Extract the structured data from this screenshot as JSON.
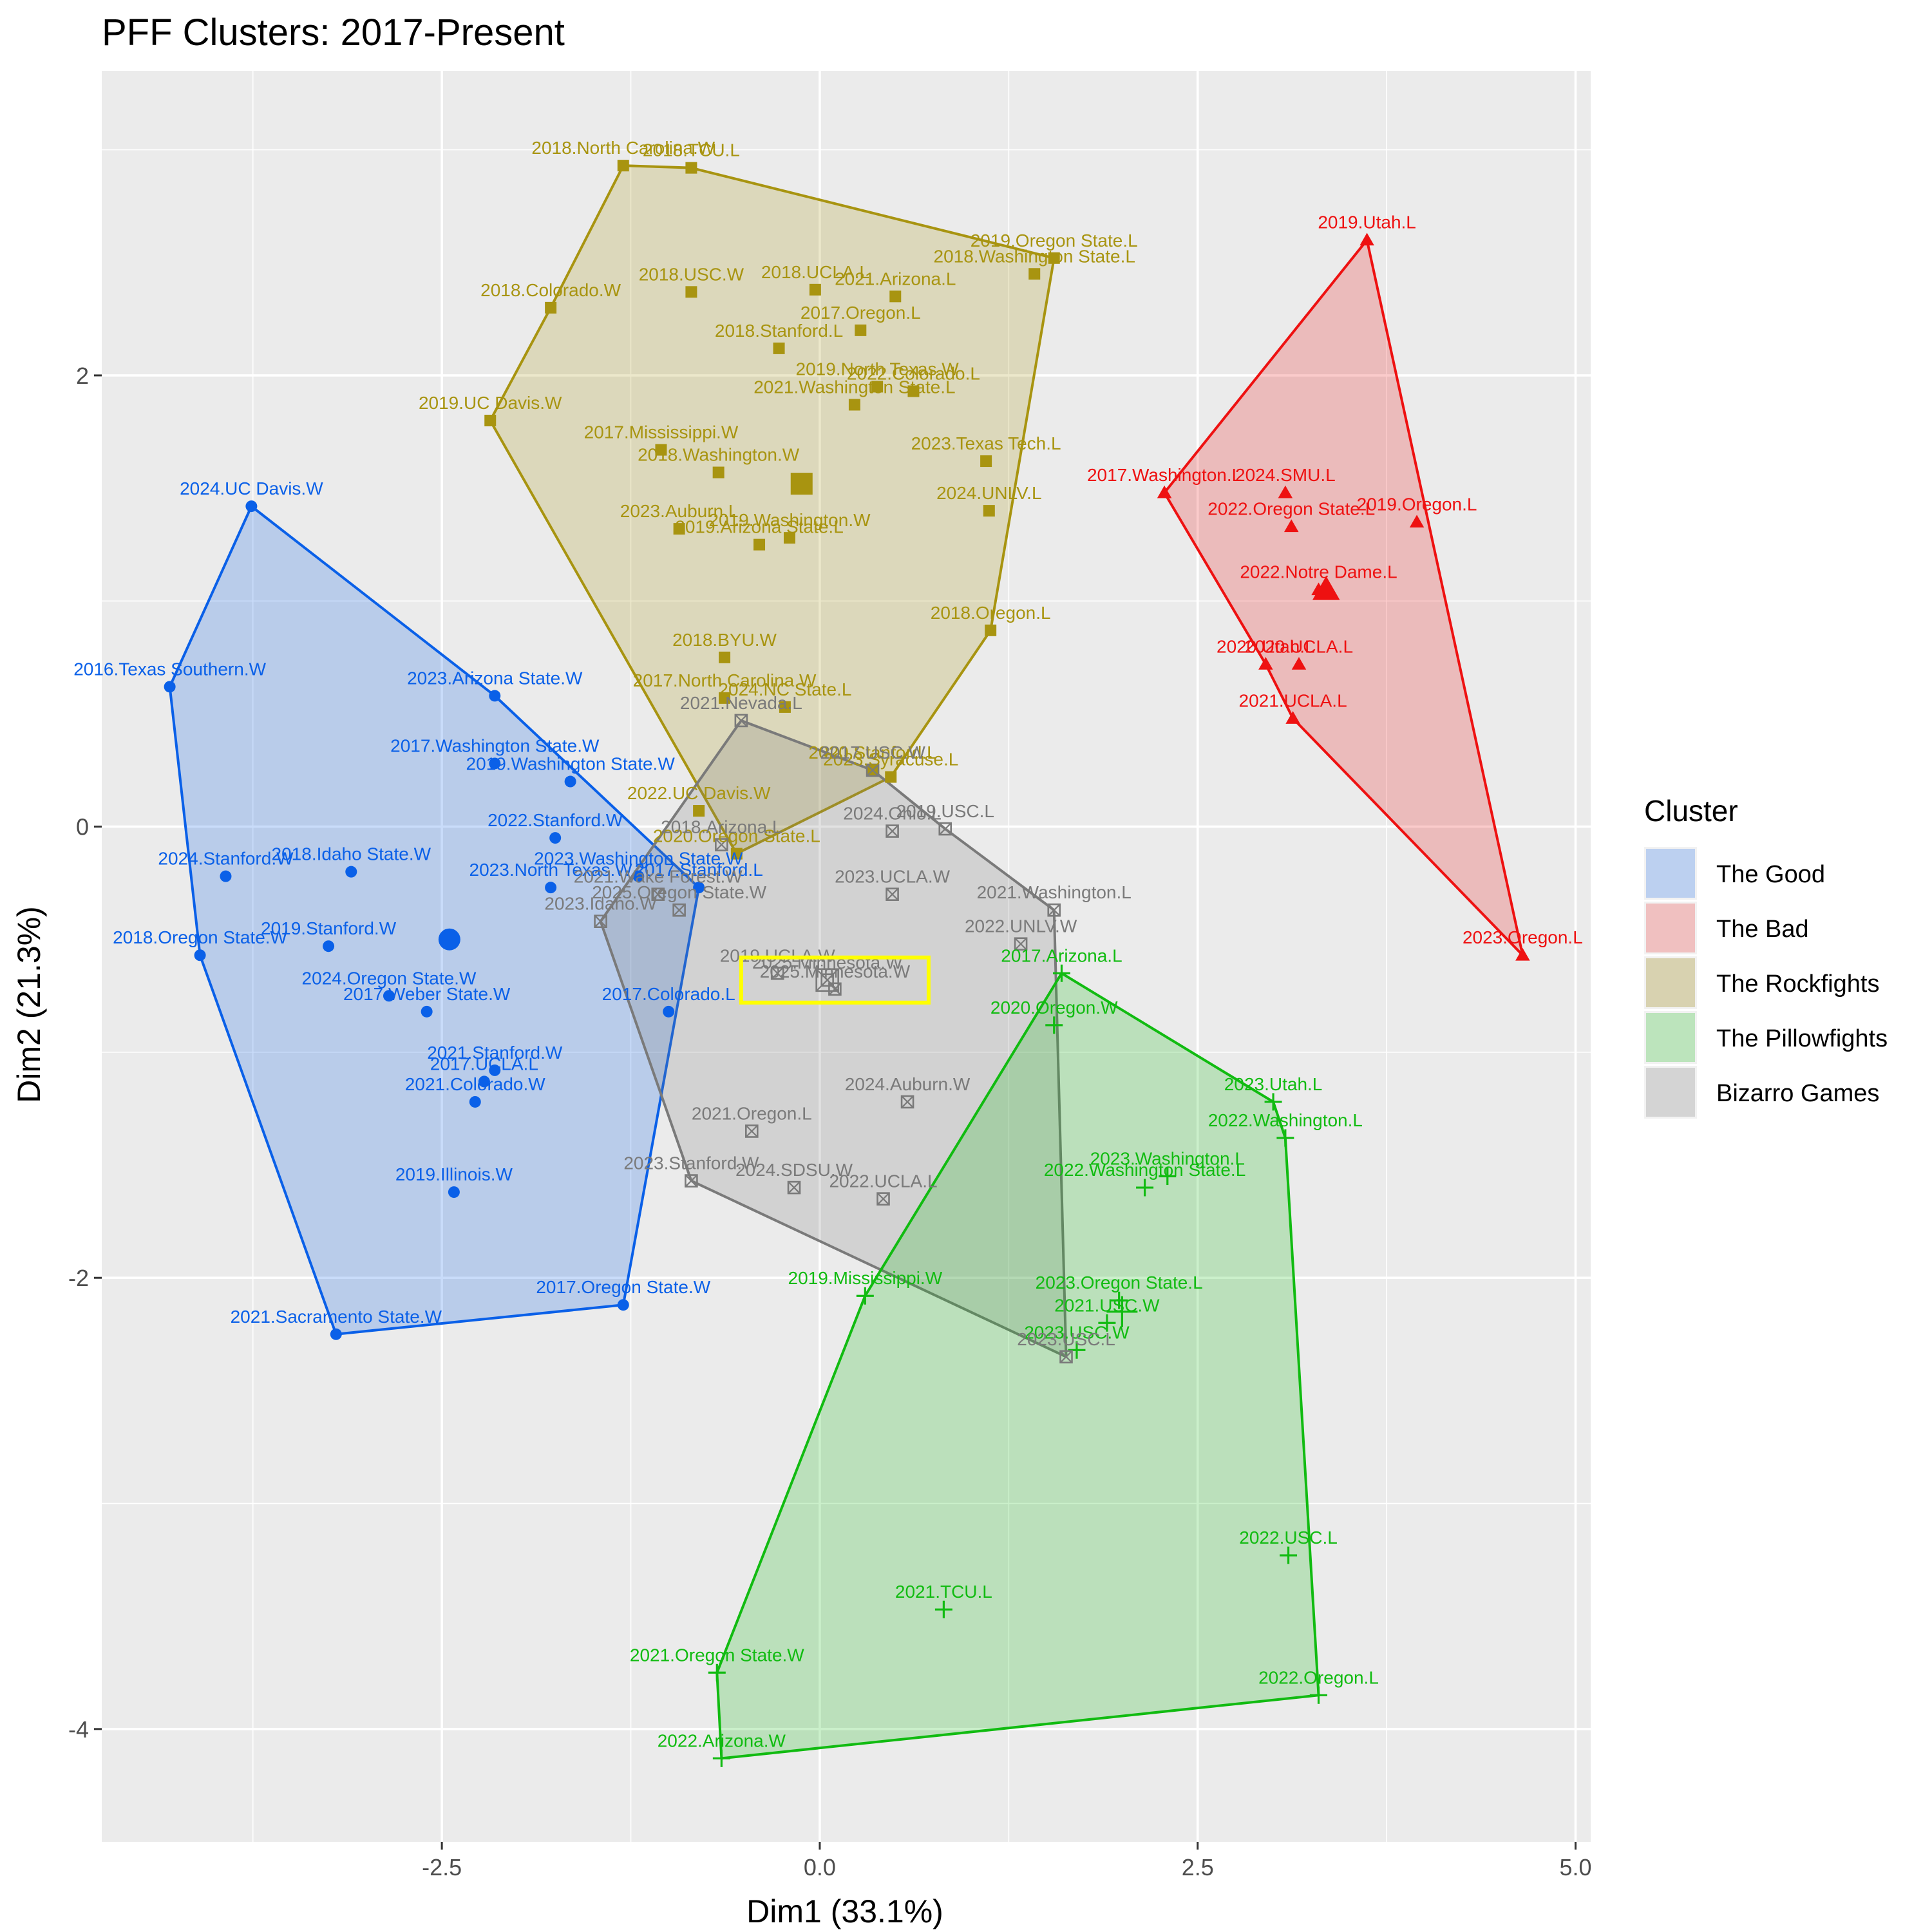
{
  "chart_data": {
    "type": "scatter",
    "title": "PFF Clusters: 2017-Present",
    "xlabel": "Dim1 (33.1%)",
    "ylabel": "Dim2 (21.3%)",
    "xlim": [
      -4.75,
      5.1
    ],
    "ylim": [
      -4.5,
      3.35
    ],
    "xticks": [
      -2.5,
      0.0,
      2.5,
      5.0
    ],
    "xtick_labels": [
      "-2.5",
      "0.0",
      "2.5",
      "5.0"
    ],
    "yticks": [
      -4,
      -2,
      0,
      2
    ],
    "ytick_labels": [
      "-4",
      "-2",
      "0",
      "2"
    ],
    "grid": true,
    "legend": {
      "title": "Cluster",
      "position": "right"
    },
    "highlight": {
      "x0": -0.52,
      "x1": 0.72,
      "y0": -0.78,
      "y1": -0.58,
      "color": "#ffff00"
    },
    "series": [
      {
        "name": "The Good",
        "color": "#0a60e8",
        "fill": "#bcd0f0",
        "marker": "circle",
        "centroid": [
          -2.45,
          -0.5
        ],
        "points": [
          {
            "x": -3.76,
            "y": 1.42,
            "label": "2024.UC Davis.W"
          },
          {
            "x": -4.3,
            "y": 0.62,
            "label": "2016.Texas Southern.W"
          },
          {
            "x": -2.15,
            "y": 0.58,
            "label": "2023.Arizona State.W"
          },
          {
            "x": -2.15,
            "y": 0.28,
            "label": "2017.Washington State.W"
          },
          {
            "x": -1.65,
            "y": 0.2,
            "label": "2019.Washington State.W"
          },
          {
            "x": -1.75,
            "y": -0.05,
            "label": "2022.Stanford.W"
          },
          {
            "x": -3.1,
            "y": -0.2,
            "label": "2018.Idaho State.W"
          },
          {
            "x": -3.93,
            "y": -0.22,
            "label": "2024.Stanford.W"
          },
          {
            "x": -1.78,
            "y": -0.27,
            "label": "2023.North Texas.W"
          },
          {
            "x": -1.2,
            "y": -0.22,
            "label": "2023.Washington State.W"
          },
          {
            "x": -0.8,
            "y": -0.27,
            "label": "2017.Stanford.L"
          },
          {
            "x": -3.25,
            "y": -0.53,
            "label": "2019.Stanford.W"
          },
          {
            "x": -4.1,
            "y": -0.57,
            "label": "2018.Oregon State.W"
          },
          {
            "x": -2.85,
            "y": -0.75,
            "label": "2024.Oregon State.W"
          },
          {
            "x": -2.6,
            "y": -0.82,
            "label": "2017.Weber State.W"
          },
          {
            "x": -1.0,
            "y": -0.82,
            "label": "2017.Colorado.L"
          },
          {
            "x": -2.15,
            "y": -1.08,
            "label": "2021.Stanford.W"
          },
          {
            "x": -2.22,
            "y": -1.13,
            "label": "2017.UCLA.L"
          },
          {
            "x": -2.28,
            "y": -1.22,
            "label": "2021.Colorado.W"
          },
          {
            "x": -2.42,
            "y": -1.62,
            "label": "2019.Illinois.W"
          },
          {
            "x": -1.3,
            "y": -2.12,
            "label": "2017.Oregon State.W"
          },
          {
            "x": -3.2,
            "y": -2.25,
            "label": "2021.Sacramento State.W"
          }
        ],
        "hull": [
          [
            -3.76,
            1.42
          ],
          [
            -2.15,
            0.58
          ],
          [
            -0.8,
            -0.27
          ],
          [
            -1.3,
            -2.12
          ],
          [
            -3.2,
            -2.25
          ],
          [
            -4.1,
            -0.57
          ],
          [
            -4.3,
            0.62
          ]
        ]
      },
      {
        "name": "The Bad",
        "color": "#ee1111",
        "fill": "#f0c0c0",
        "marker": "triangle",
        "centroid": [
          3.35,
          1.05
        ],
        "points": [
          {
            "x": 3.62,
            "y": 2.6,
            "label": "2019.Utah.L"
          },
          {
            "x": 2.28,
            "y": 1.48,
            "label": "2017.Washington.L"
          },
          {
            "x": 3.08,
            "y": 1.48,
            "label": "2024.SMU.L"
          },
          {
            "x": 3.12,
            "y": 1.33,
            "label": "2022.Oregon State.L"
          },
          {
            "x": 3.95,
            "y": 1.35,
            "label": "2019.Oregon.L"
          },
          {
            "x": 3.3,
            "y": 1.05,
            "label": "2022.Notre Dame.L"
          },
          {
            "x": 2.95,
            "y": 0.72,
            "label": "2020.Utah.L"
          },
          {
            "x": 3.17,
            "y": 0.72,
            "label": "2020.UCLA.L"
          },
          {
            "x": 3.13,
            "y": 0.48,
            "label": "2021.UCLA.L"
          },
          {
            "x": 4.65,
            "y": -0.57,
            "label": "2023.Oregon.L"
          }
        ],
        "hull": [
          [
            3.62,
            2.6
          ],
          [
            2.28,
            1.48
          ],
          [
            2.95,
            0.72
          ],
          [
            3.13,
            0.48
          ],
          [
            4.65,
            -0.57
          ]
        ]
      },
      {
        "name": "The Rockfights",
        "color": "#a89410",
        "fill": "#d8d2b0",
        "marker": "square",
        "centroid": [
          -0.12,
          1.52
        ],
        "points": [
          {
            "x": -1.3,
            "y": 2.93,
            "label": "2018.North Carolina.W"
          },
          {
            "x": -0.85,
            "y": 2.92,
            "label": "2018.TCU.L"
          },
          {
            "x": 1.55,
            "y": 2.52,
            "label": "2019.Oregon State.L"
          },
          {
            "x": 1.42,
            "y": 2.45,
            "label": "2018.Washington State.L"
          },
          {
            "x": -0.85,
            "y": 2.37,
            "label": "2018.USC.W"
          },
          {
            "x": -0.03,
            "y": 2.38,
            "label": "2018.UCLA.L"
          },
          {
            "x": 0.5,
            "y": 2.35,
            "label": "2021.Arizona.L"
          },
          {
            "x": -1.78,
            "y": 2.3,
            "label": "2018.Colorado.W"
          },
          {
            "x": 0.27,
            "y": 2.2,
            "label": "2017.Oregon.L"
          },
          {
            "x": -0.27,
            "y": 2.12,
            "label": "2018.Stanford.L"
          },
          {
            "x": 0.38,
            "y": 1.95,
            "label": "2019.North Texas.W"
          },
          {
            "x": 0.62,
            "y": 1.93,
            "label": "2022.Colorado.L"
          },
          {
            "x": 0.23,
            "y": 1.87,
            "label": "2021.Washington State.L"
          },
          {
            "x": -2.18,
            "y": 1.8,
            "label": "2019.UC Davis.W"
          },
          {
            "x": -1.05,
            "y": 1.67,
            "label": "2017.Mississippi.W"
          },
          {
            "x": 1.1,
            "y": 1.62,
            "label": "2023.Texas Tech.L"
          },
          {
            "x": -0.67,
            "y": 1.57,
            "label": "2018.Washington.W"
          },
          {
            "x": 1.12,
            "y": 1.4,
            "label": "2024.UNLV.L"
          },
          {
            "x": -0.93,
            "y": 1.32,
            "label": "2023.Auburn.L"
          },
          {
            "x": -0.4,
            "y": 1.25,
            "label": "2019.Arizona State.L"
          },
          {
            "x": -0.2,
            "y": 1.28,
            "label": "2019.Washington.W"
          },
          {
            "x": 1.13,
            "y": 0.87,
            "label": "2018.Oregon.L"
          },
          {
            "x": -0.63,
            "y": 0.75,
            "label": "2018.BYU.W"
          },
          {
            "x": -0.63,
            "y": 0.57,
            "label": "2017.North Carolina.W"
          },
          {
            "x": -0.23,
            "y": 0.53,
            "label": "2024.NC State.L"
          },
          {
            "x": 0.35,
            "y": 0.25,
            "label": "2020.Stanford.L"
          },
          {
            "x": 0.47,
            "y": 0.22,
            "label": "2023.Syracuse.L"
          },
          {
            "x": -0.8,
            "y": 0.07,
            "label": "2022.UC Davis.W"
          },
          {
            "x": -0.55,
            "y": -0.12,
            "label": "2020.Oregon State.L"
          }
        ],
        "hull": [
          [
            -1.3,
            2.93
          ],
          [
            -0.85,
            2.92
          ],
          [
            1.55,
            2.52
          ],
          [
            1.13,
            0.87
          ],
          [
            0.47,
            0.22
          ],
          [
            -0.55,
            -0.12
          ],
          [
            -2.18,
            1.8
          ],
          [
            -1.78,
            2.3
          ]
        ]
      },
      {
        "name": "The Pillowfights",
        "color": "#11bb11",
        "fill": "#bce4bc",
        "marker": "plus",
        "centroid": [
          2.0,
          -2.15
        ],
        "points": [
          {
            "x": 1.6,
            "y": -0.65,
            "label": "2017.Arizona.L"
          },
          {
            "x": 1.55,
            "y": -0.88,
            "label": "2020.Oregon.W"
          },
          {
            "x": 3.0,
            "y": -1.22,
            "label": "2023.Utah.L"
          },
          {
            "x": 3.08,
            "y": -1.38,
            "label": "2022.Washington.L"
          },
          {
            "x": 2.15,
            "y": -1.6,
            "label": "2022.Washington State.L"
          },
          {
            "x": 2.3,
            "y": -1.55,
            "label": "2023.Washington.L"
          },
          {
            "x": 0.3,
            "y": -2.08,
            "label": "2019.Mississippi.W"
          },
          {
            "x": 1.98,
            "y": -2.1,
            "label": "2023.Oregon State.L"
          },
          {
            "x": 1.9,
            "y": -2.2,
            "label": "2021.USC.W"
          },
          {
            "x": 1.7,
            "y": -2.32,
            "label": "2023.USC.W"
          },
          {
            "x": 3.1,
            "y": -3.23,
            "label": "2022.USC.L"
          },
          {
            "x": 0.82,
            "y": -3.47,
            "label": "2021.TCU.L"
          },
          {
            "x": -0.68,
            "y": -3.75,
            "label": "2021.Oregon State.W"
          },
          {
            "x": 3.3,
            "y": -3.85,
            "label": "2022.Oregon.L"
          },
          {
            "x": -0.65,
            "y": -4.13,
            "label": "2022.Arizona.W"
          }
        ],
        "hull": [
          [
            1.6,
            -0.65
          ],
          [
            3.0,
            -1.22
          ],
          [
            3.08,
            -1.38
          ],
          [
            3.3,
            -3.85
          ],
          [
            -0.65,
            -4.13
          ],
          [
            -0.68,
            -3.75
          ],
          [
            0.3,
            -2.08
          ]
        ]
      },
      {
        "name": "Bizarro Games",
        "color": "#7a7a7a",
        "fill": "#d4d4d4",
        "marker": "square-x",
        "centroid": [
          0.05,
          -0.68
        ],
        "points": [
          {
            "x": -0.52,
            "y": 0.47,
            "label": "2021.Nevada.L"
          },
          {
            "x": 0.35,
            "y": 0.25,
            "label": "2017.USC.W"
          },
          {
            "x": 0.48,
            "y": -0.02,
            "label": "2024.Ohio.L"
          },
          {
            "x": 0.83,
            "y": -0.01,
            "label": "2019.USC.L"
          },
          {
            "x": -0.65,
            "y": -0.08,
            "label": "2018.Arizona.L"
          },
          {
            "x": -1.07,
            "y": -0.3,
            "label": "2021.Wake Forest.W"
          },
          {
            "x": -0.93,
            "y": -0.37,
            "label": "2025.Oregon State.W"
          },
          {
            "x": 0.48,
            "y": -0.3,
            "label": "2023.UCLA.W"
          },
          {
            "x": 1.55,
            "y": -0.37,
            "label": "2021.Washington.L"
          },
          {
            "x": -1.45,
            "y": -0.42,
            "label": "2023.Idaho.W"
          },
          {
            "x": 1.33,
            "y": -0.52,
            "label": "2022.UNLV.W"
          },
          {
            "x": -0.28,
            "y": -0.65,
            "label": "2019.UCLA.W"
          },
          {
            "x": 0.05,
            "y": -0.68,
            "label": "2025.Minnesota.W"
          },
          {
            "x": 0.1,
            "y": -0.72,
            "label": "2025.Minnesota.W"
          },
          {
            "x": 0.58,
            "y": -1.22,
            "label": "2024.Auburn.W"
          },
          {
            "x": -0.45,
            "y": -1.35,
            "label": "2021.Oregon.L"
          },
          {
            "x": -0.85,
            "y": -1.57,
            "label": "2023.Stanford.W"
          },
          {
            "x": -0.17,
            "y": -1.6,
            "label": "2024.SDSU.W"
          },
          {
            "x": 0.42,
            "y": -1.65,
            "label": "2022.UCLA.L"
          },
          {
            "x": 1.63,
            "y": -2.35,
            "label": "2023.USC.L"
          }
        ],
        "hull": [
          [
            -0.52,
            0.47
          ],
          [
            0.35,
            0.25
          ],
          [
            0.83,
            -0.01
          ],
          [
            1.55,
            -0.37
          ],
          [
            1.63,
            -2.35
          ],
          [
            -0.85,
            -1.57
          ],
          [
            -1.45,
            -0.42
          ]
        ]
      }
    ]
  }
}
